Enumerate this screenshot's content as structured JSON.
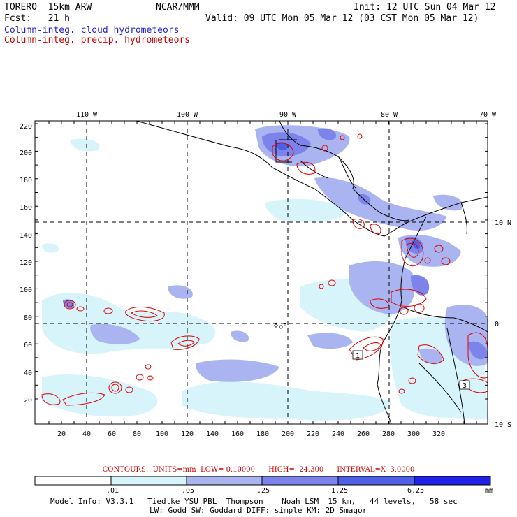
{
  "header": {
    "model": "TORERO  15km ARW",
    "org": "NCAR/MMM",
    "init": "Init: 12 UTC Sun 04 Mar 12",
    "fcst": "Fcst:   21 h",
    "valid": "Valid: 09 UTC Mon 05 Mar 12 (03 CST Mon 05 Mar 12)",
    "field1": "Column-integ. cloud hydrometeors",
    "field2": "Column-integ. precip. hydrometeors"
  },
  "colors": {
    "field1": "#2222cc",
    "field2": "#cc0000",
    "cloud_light": "#d8f4fb",
    "cloud_mid": "#aab4f0",
    "cloud_dark": "#7c84ec",
    "cloud_darker": "#5060e6",
    "precip": "#dd0000"
  },
  "map": {
    "x_ticks": [
      "20",
      "40",
      "60",
      "80",
      "100",
      "120",
      "140",
      "160",
      "180",
      "200",
      "220",
      "240",
      "260",
      "280",
      "300",
      "320"
    ],
    "y_ticks": [
      "20",
      "40",
      "60",
      "80",
      "100",
      "120",
      "140",
      "160",
      "180",
      "200",
      "220"
    ],
    "lon_labels": [
      "110 W",
      "100 W",
      "90 W",
      "80 W",
      "70 W"
    ],
    "lat_labels": [
      "10 N",
      "0",
      "10 S"
    ],
    "cell_labels": [
      "1",
      "3"
    ]
  },
  "contours": {
    "text": "CONTOURS:  UNITS=mm  LOW= 0.10000      HIGH=  24.300      INTERVAL=X  3.0000"
  },
  "colorbar": {
    "levels": [
      ".01",
      ".05",
      ".25",
      "1.25",
      "6.25"
    ],
    "unit": "mm",
    "colors": [
      "#ffffff",
      "#d8f4fb",
      "#aab4f0",
      "#7c84ec",
      "#5060e6",
      "#2020e6"
    ]
  },
  "footer": {
    "line1": "Model Info: V3.3.1   Tiedtke YSU PBL  Thompson    Noah LSM  15 km,   44 levels,   58 sec",
    "line2": "LW: Godd SW: Goddard DIFF: simple KM: 2D Smagor"
  }
}
